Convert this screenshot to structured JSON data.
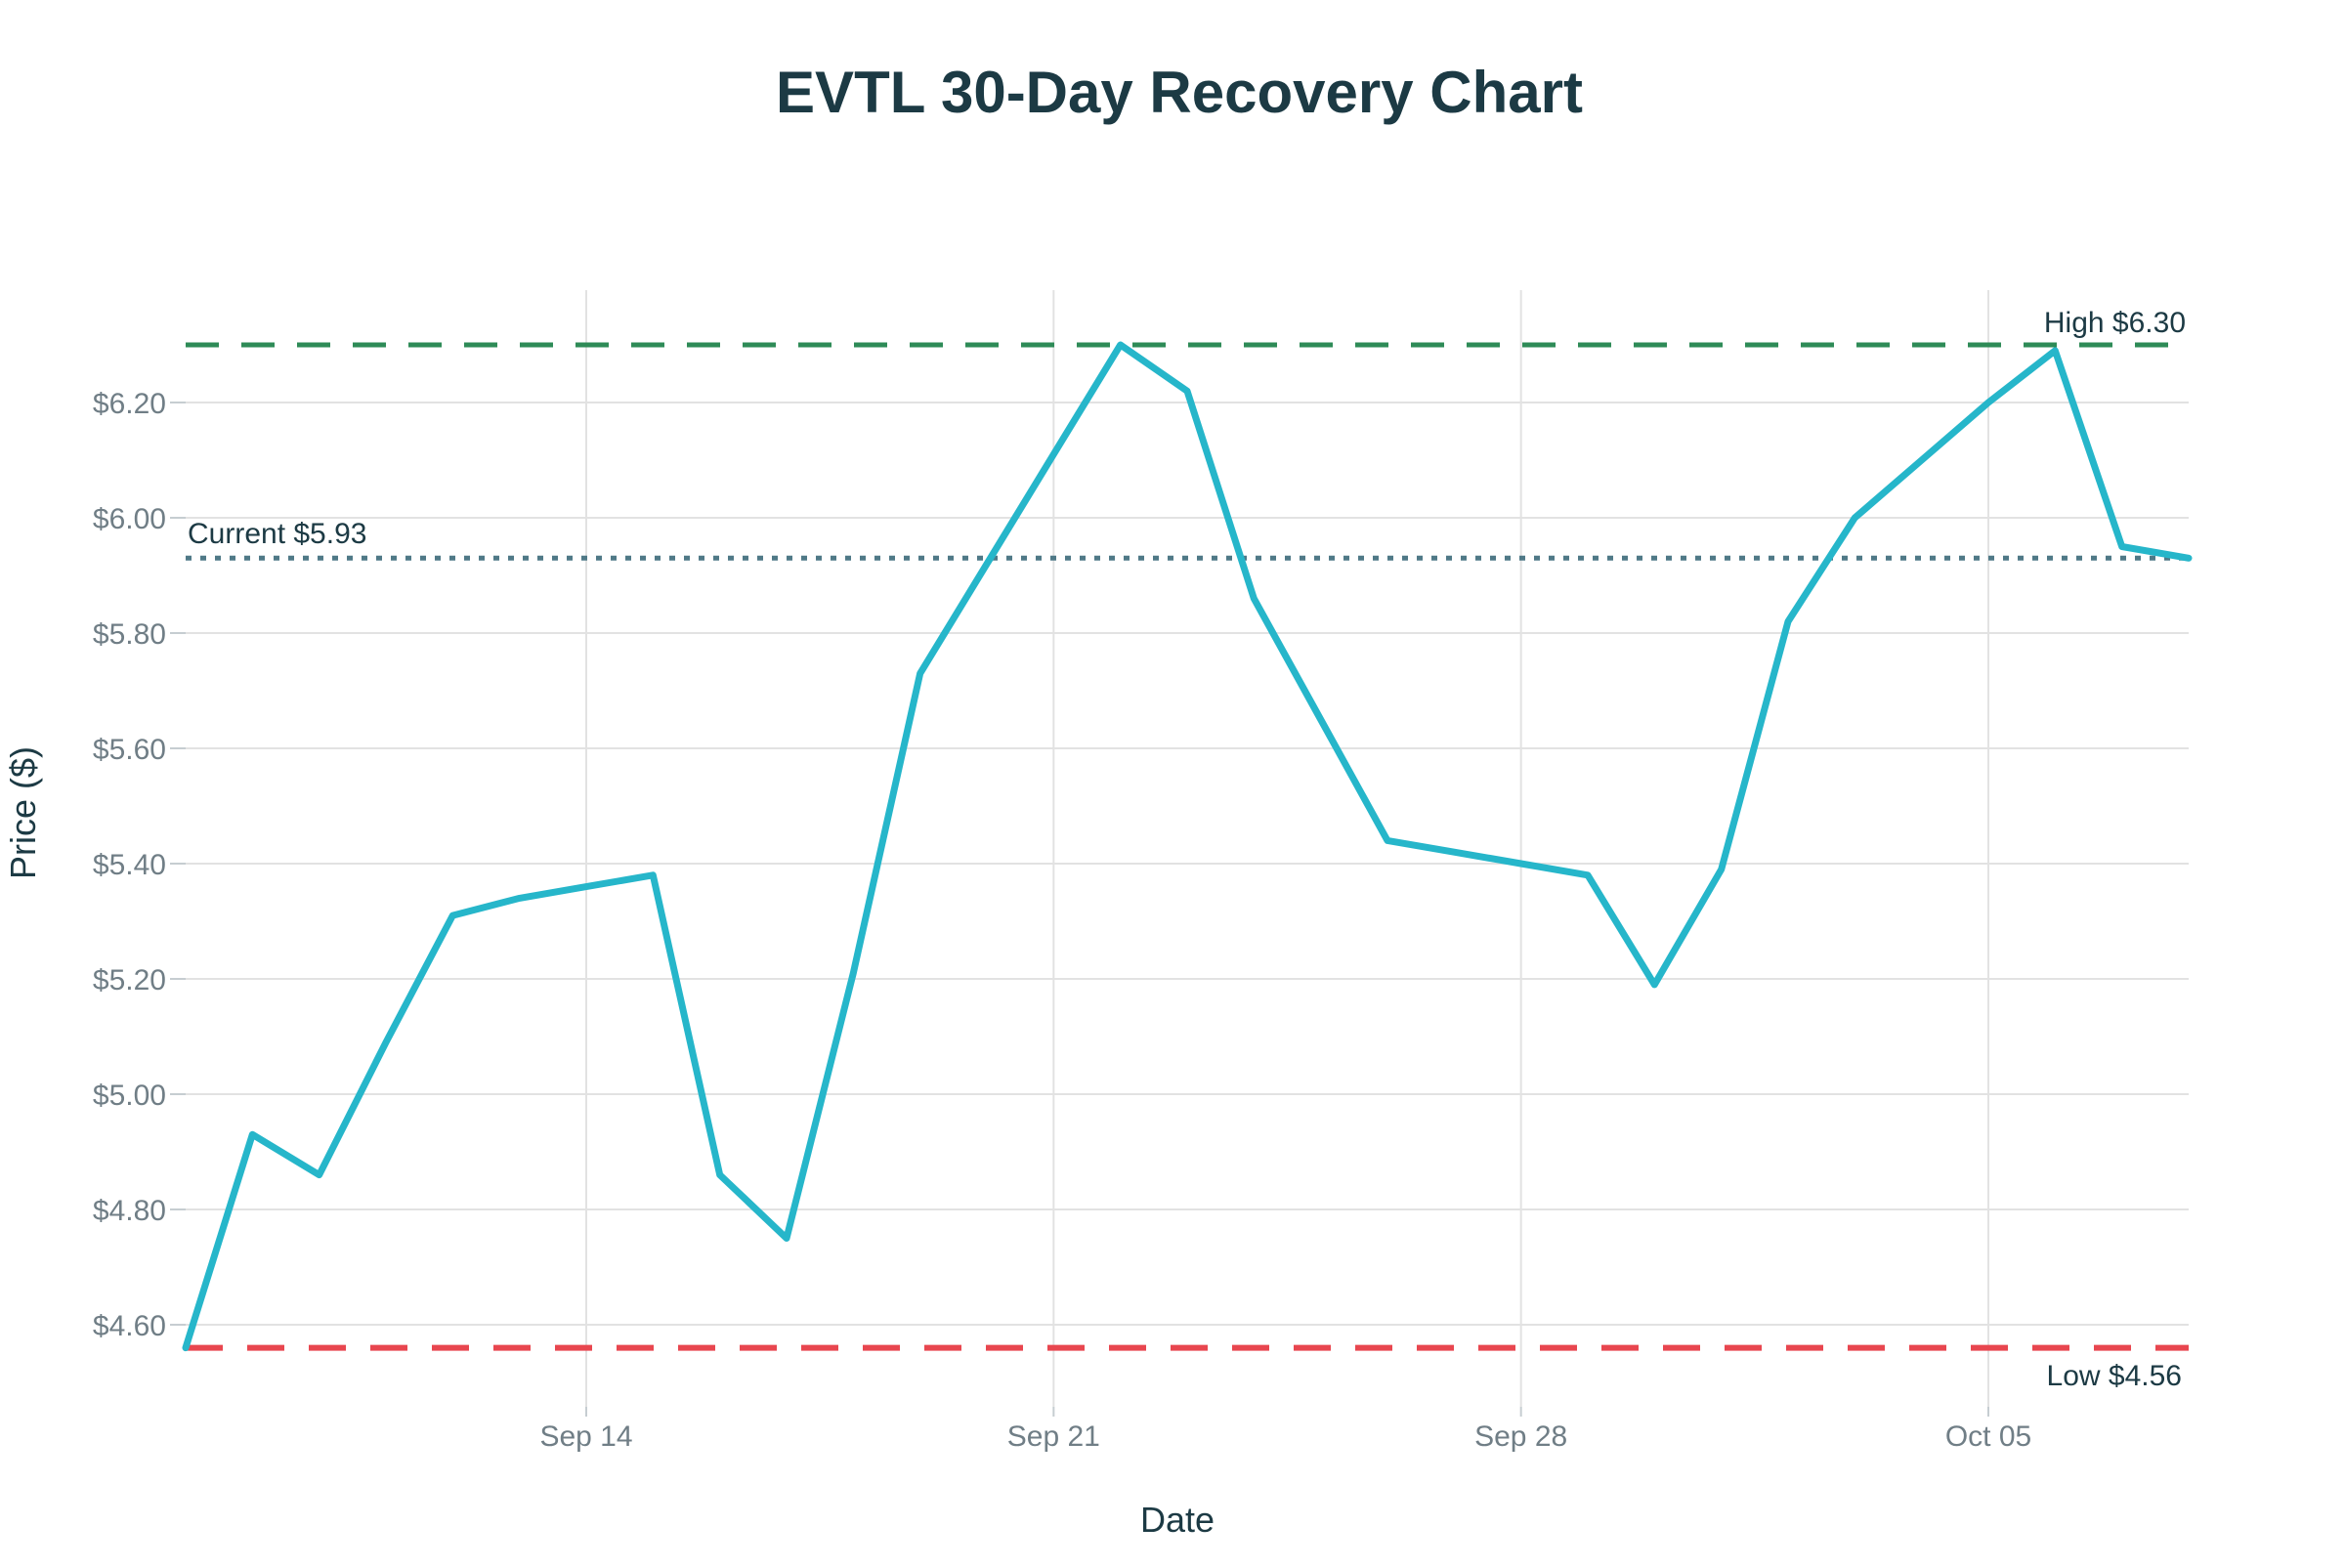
{
  "chart_data": {
    "type": "line",
    "title": "EVTL 30-Day Recovery Chart",
    "xlabel": "Date",
    "ylabel": "Price ($)",
    "x": [
      "Sep 8",
      "Sep 9",
      "Sep 10",
      "Sep 11",
      "Sep 12",
      "Sep 13",
      "Sep 14",
      "Sep 15",
      "Sep 16",
      "Sep 17",
      "Sep 18",
      "Sep 19",
      "Sep 20",
      "Sep 21",
      "Sep 22",
      "Sep 23",
      "Sep 24",
      "Sep 25",
      "Sep 26",
      "Sep 27",
      "Sep 28",
      "Sep 29",
      "Sep 30",
      "Oct 1",
      "Oct 2",
      "Oct 3",
      "Oct 4",
      "Oct 5",
      "Oct 6",
      "Oct 7",
      "Oct 8"
    ],
    "values": [
      4.56,
      4.93,
      4.86,
      5.09,
      5.31,
      5.34,
      5.36,
      5.38,
      4.86,
      4.75,
      5.21,
      5.73,
      5.92,
      6.11,
      6.3,
      6.22,
      5.86,
      5.65,
      5.44,
      5.42,
      5.4,
      5.38,
      5.19,
      5.39,
      5.82,
      6.0,
      6.1,
      6.2,
      6.29,
      5.95,
      5.93
    ],
    "x_tick_labels": [
      "Sep 14",
      "Sep 21",
      "Sep 28",
      "Oct 05"
    ],
    "x_tick_indices": [
      6,
      13,
      20,
      27
    ],
    "y_tick_labels": [
      "$4.60",
      "$4.80",
      "$5.00",
      "$5.20",
      "$5.40",
      "$5.60",
      "$5.80",
      "$6.00",
      "$6.20"
    ],
    "y_tick_values": [
      4.6,
      4.8,
      5.0,
      5.2,
      5.4,
      5.6,
      5.8,
      6.0,
      6.2
    ],
    "ylim": [
      4.458,
      6.395
    ],
    "grid": true,
    "legend_position": "none",
    "annotations": {
      "high": {
        "label": "High $6.30",
        "value": 6.3
      },
      "current": {
        "label": "Current $5.93",
        "value": 5.93
      },
      "low": {
        "label": "Low $4.56",
        "value": 4.56
      }
    }
  },
  "colors": {
    "series_line": "#26b6ca",
    "high_line": "#2e8b57",
    "current_line": "#4f7987",
    "low_line": "#e8464f",
    "gridline": "#e2e2e2",
    "tick_mark": "#c6cdd1",
    "tick_text": "#707e86",
    "dark_text": "#1c3a44",
    "background": "#ffffff"
  }
}
